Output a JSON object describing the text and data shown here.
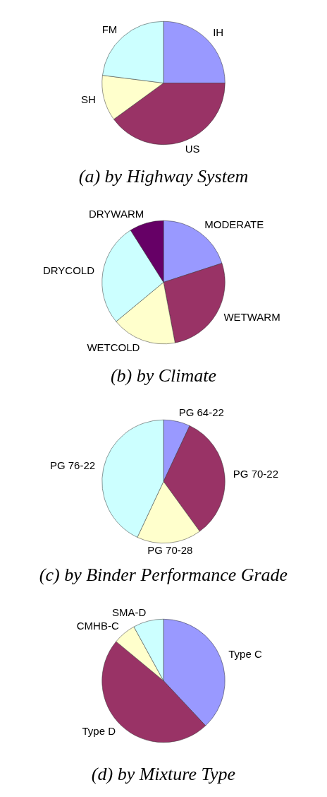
{
  "chart_data": [
    {
      "type": "pie",
      "title": "(a) by Highway System",
      "categories": [
        "IH",
        "US",
        "SH",
        "FM"
      ],
      "values": [
        25,
        40,
        12,
        23
      ],
      "colors": [
        "#9999ff",
        "#993366",
        "#ffffcc",
        "#ccffff"
      ],
      "legend": false
    },
    {
      "type": "pie",
      "title": "(b) by Climate",
      "categories": [
        "MODERATE",
        "WETWARM",
        "WETCOLD",
        "DRYCOLD",
        "DRYWARM"
      ],
      "values": [
        20,
        27,
        17,
        27,
        9
      ],
      "colors": [
        "#9999ff",
        "#993366",
        "#ffffcc",
        "#ccffff",
        "#660066"
      ],
      "legend": false
    },
    {
      "type": "pie",
      "title": "(c) by Binder Performance Grade",
      "categories": [
        "PG 64-22",
        "PG 70-22",
        "PG 70-28",
        "PG 76-22"
      ],
      "values": [
        7,
        33,
        17,
        43
      ],
      "colors": [
        "#9999ff",
        "#993366",
        "#ffffcc",
        "#ccffff"
      ],
      "legend": false
    },
    {
      "type": "pie",
      "title": "(d) by Mixture Type",
      "categories": [
        "Type C",
        "Type D",
        "CMHB-C",
        "SMA-D"
      ],
      "values": [
        38,
        48,
        6,
        8
      ],
      "colors": [
        "#9999ff",
        "#993366",
        "#ffffcc",
        "#ccffff"
      ],
      "legend": false
    }
  ]
}
